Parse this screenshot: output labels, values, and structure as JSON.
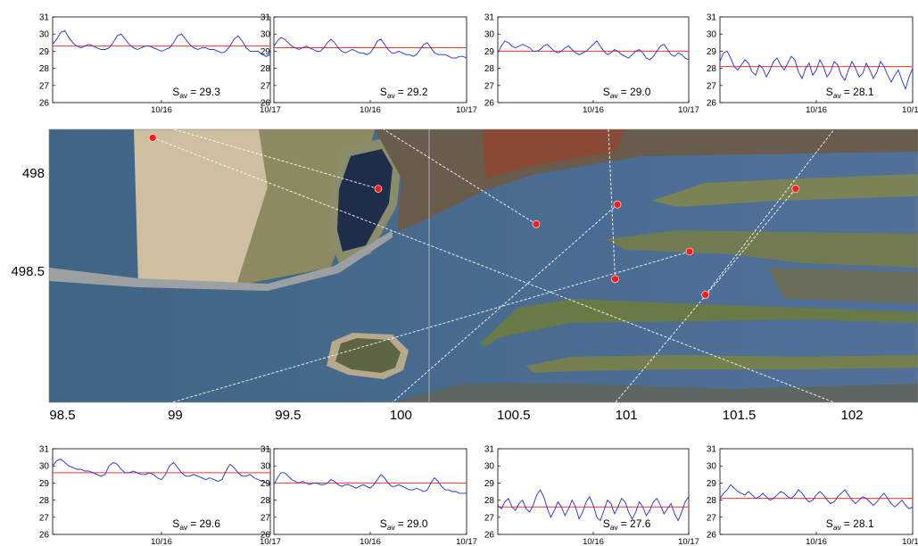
{
  "colors": {
    "series": "#1f2fd6",
    "average": "#ff3030",
    "station": "#ff1a1a",
    "water": "#3f5e88",
    "sea": "#4a6c92",
    "dune": "#cfc2a4",
    "land_green": "#6f7a4c",
    "industry": "#6c5a48"
  },
  "map": {
    "x_ticks": [
      "98.5",
      "99",
      "99.5",
      "100",
      "100.5",
      "101",
      "101.5",
      "102"
    ],
    "y_ticks": [
      "498.5",
      "498"
    ],
    "stations": [
      {
        "x": 99.9,
        "y": 498.08
      },
      {
        "x": 100.6,
        "y": 498.26
      },
      {
        "x": 100.95,
        "y": 498.54
      },
      {
        "x": 101.35,
        "y": 498.62
      },
      {
        "x": 101.28,
        "y": 498.4
      },
      {
        "x": 100.96,
        "y": 498.16
      },
      {
        "x": 101.75,
        "y": 498.08
      },
      {
        "x": 98.9,
        "y": 497.82
      }
    ]
  },
  "chart_data": [
    {
      "type": "line",
      "name": "",
      "ylim": [
        26,
        31
      ],
      "yticks": [
        "26",
        "27",
        "28",
        "29",
        "30",
        "31"
      ],
      "xticks": [
        "10/16",
        "10/17"
      ],
      "average": 29.3,
      "label": "29.3",
      "label_prefix": "S",
      "label_sub": "av",
      "label_eq": "= ",
      "values": [
        29.4,
        29.7,
        30.1,
        30.2,
        29.8,
        29.5,
        29.3,
        29.2,
        29.3,
        29.4,
        29.3,
        29.2,
        29.1,
        29.1,
        29.2,
        29.5,
        29.9,
        30.0,
        29.7,
        29.4,
        29.2,
        29.1,
        29.2,
        29.3,
        29.3,
        29.2,
        29.1,
        29.0,
        29.1,
        29.2,
        29.5,
        29.9,
        30.0,
        29.7,
        29.4,
        29.2,
        29.1,
        29.2,
        29.2,
        29.1,
        29.1,
        29.0,
        28.9,
        29.0,
        29.3,
        29.7,
        29.9,
        29.6,
        29.2,
        29.0,
        29.0,
        29.0,
        28.8,
        28.7,
        28.8
      ]
    },
    {
      "type": "line",
      "name": "",
      "ylim": [
        26,
        31
      ],
      "yticks": [
        "26",
        "27",
        "28",
        "29",
        "30",
        "31"
      ],
      "xticks": [
        "10/16",
        "10/17"
      ],
      "average": 29.2,
      "label": "29.2",
      "label_prefix": "S",
      "label_sub": "av",
      "label_eq": "= ",
      "values": [
        29.3,
        29.6,
        29.8,
        29.7,
        29.5,
        29.3,
        29.2,
        29.1,
        29.2,
        29.3,
        29.2,
        29.1,
        29.0,
        29.0,
        29.2,
        29.5,
        29.7,
        29.5,
        29.2,
        29.0,
        28.9,
        29.0,
        29.1,
        29.0,
        28.9,
        28.9,
        28.8,
        28.9,
        29.2,
        29.6,
        29.7,
        29.4,
        29.1,
        28.9,
        28.9,
        29.0,
        28.9,
        28.8,
        28.8,
        28.7,
        28.8,
        29.1,
        29.4,
        29.5,
        29.2,
        28.9,
        28.8,
        28.8,
        28.8,
        28.7,
        28.6,
        28.6,
        28.7,
        28.7,
        28.6
      ]
    },
    {
      "type": "line",
      "name": "",
      "ylim": [
        26,
        31
      ],
      "yticks": [
        "26",
        "27",
        "28",
        "29",
        "30",
        "31"
      ],
      "xticks": [
        "10/16",
        "10/17"
      ],
      "average": 29.0,
      "label": "29.0",
      "label_prefix": "S",
      "label_sub": "av",
      "label_eq": "= ",
      "values": [
        28.9,
        29.3,
        29.6,
        29.5,
        29.3,
        29.2,
        29.3,
        29.4,
        29.3,
        29.2,
        29.0,
        29.0,
        29.1,
        29.3,
        29.4,
        29.2,
        29.0,
        28.9,
        29.0,
        29.2,
        29.3,
        29.1,
        28.9,
        28.8,
        28.9,
        29.0,
        29.2,
        29.4,
        29.6,
        29.3,
        29.0,
        28.8,
        28.9,
        29.1,
        29.0,
        28.8,
        28.7,
        28.6,
        28.8,
        29.0,
        29.1,
        28.9,
        28.6,
        28.5,
        28.7,
        29.0,
        29.3,
        29.4,
        29.1,
        28.8,
        28.7,
        28.9,
        28.8,
        28.6,
        28.5
      ]
    },
    {
      "type": "line",
      "name": "",
      "ylim": [
        26,
        31
      ],
      "yticks": [
        "26",
        "27",
        "28",
        "29",
        "30",
        "31"
      ],
      "xticks": [
        "10/16",
        "10/17"
      ],
      "average": 28.1,
      "label": "28.1",
      "label_prefix": "S",
      "label_sub": "av",
      "label_eq": "= ",
      "values": [
        28.4,
        28.9,
        29.0,
        28.6,
        28.1,
        27.9,
        28.2,
        28.5,
        28.3,
        27.8,
        27.6,
        28.2,
        28.0,
        27.5,
        27.9,
        28.4,
        28.6,
        28.2,
        27.9,
        28.3,
        28.7,
        28.5,
        27.8,
        27.4,
        28.0,
        28.3,
        27.6,
        27.9,
        28.5,
        28.1,
        27.5,
        27.8,
        28.4,
        28.2,
        27.6,
        27.3,
        27.9,
        28.4,
        28.0,
        27.5,
        27.7,
        28.3,
        27.9,
        27.4,
        27.8,
        28.4,
        28.1,
        27.6,
        27.2,
        27.6,
        27.9,
        27.3,
        26.8,
        27.5,
        28.0
      ]
    },
    {
      "type": "line",
      "name": "",
      "ylim": [
        26,
        31
      ],
      "yticks": [
        "26",
        "27",
        "28",
        "29",
        "30",
        "31"
      ],
      "xticks": [
        "10/16",
        "10/17"
      ],
      "average": 29.6,
      "label": "29.6",
      "label_prefix": "S",
      "label_sub": "av",
      "label_eq": "= ",
      "values": [
        30.0,
        30.3,
        30.4,
        30.2,
        30.0,
        29.9,
        29.8,
        29.8,
        29.7,
        29.7,
        29.6,
        29.5,
        29.4,
        29.5,
        30.0,
        30.2,
        30.1,
        29.8,
        29.6,
        29.6,
        29.7,
        29.6,
        29.5,
        29.5,
        29.6,
        29.5,
        29.3,
        29.2,
        29.5,
        30.0,
        30.2,
        29.9,
        29.6,
        29.4,
        29.4,
        29.5,
        29.4,
        29.3,
        29.2,
        29.3,
        29.2,
        29.1,
        29.2,
        29.7,
        30.1,
        29.9,
        29.6,
        29.4,
        29.4,
        29.5,
        29.3,
        29.2,
        29.1,
        29.0,
        28.9
      ]
    },
    {
      "type": "line",
      "name": "",
      "ylim": [
        26,
        31
      ],
      "yticks": [
        "26",
        "27",
        "28",
        "29",
        "30",
        "31"
      ],
      "xticks": [
        "10/16",
        "10/17"
      ],
      "average": 29.0,
      "label": "29.0",
      "label_prefix": "S",
      "label_sub": "av",
      "label_eq": "= ",
      "values": [
        28.9,
        29.3,
        29.6,
        29.6,
        29.4,
        29.2,
        29.1,
        29.0,
        29.1,
        29.0,
        28.9,
        29.0,
        29.0,
        28.9,
        28.9,
        29.0,
        29.2,
        29.1,
        28.9,
        28.8,
        28.9,
        28.9,
        28.8,
        28.7,
        28.8,
        28.9,
        28.8,
        28.7,
        28.9,
        29.2,
        29.5,
        29.3,
        29.0,
        28.8,
        28.8,
        28.9,
        28.8,
        28.7,
        28.6,
        28.6,
        28.7,
        28.6,
        28.5,
        28.6,
        29.0,
        29.3,
        29.1,
        28.8,
        28.6,
        28.6,
        28.5,
        28.5,
        28.4,
        28.4,
        28.4
      ]
    },
    {
      "type": "line",
      "name": "",
      "ylim": [
        26,
        31
      ],
      "yticks": [
        "26",
        "27",
        "28",
        "29",
        "30",
        "31"
      ],
      "xticks": [
        "10/16",
        "10/17"
      ],
      "average": 27.6,
      "label": "27.6",
      "label_prefix": "S",
      "label_sub": "av",
      "label_eq": "= ",
      "values": [
        27.7,
        27.5,
        27.9,
        28.1,
        27.6,
        27.4,
        27.8,
        28.0,
        27.5,
        27.3,
        27.7,
        28.3,
        28.6,
        28.2,
        27.5,
        27.0,
        27.4,
        27.9,
        27.6,
        27.1,
        27.5,
        28.0,
        27.6,
        26.9,
        27.3,
        27.9,
        28.2,
        27.7,
        27.0,
        26.8,
        27.4,
        28.0,
        27.8,
        27.2,
        27.6,
        28.1,
        27.9,
        27.3,
        26.9,
        27.3,
        27.9,
        27.6,
        27.1,
        27.4,
        27.9,
        28.1,
        27.7,
        27.2,
        27.5,
        27.8,
        27.2,
        26.8,
        27.3,
        27.9,
        28.2
      ]
    },
    {
      "type": "line",
      "name": "",
      "ylim": [
        26,
        31
      ],
      "yticks": [
        "26",
        "27",
        "28",
        "29",
        "30",
        "31"
      ],
      "xticks": [
        "10/16",
        "10/17"
      ],
      "average": 28.1,
      "label": "28.1",
      "label_prefix": "S",
      "label_sub": "av",
      "label_eq": "= ",
      "values": [
        28.1,
        28.4,
        28.6,
        28.9,
        28.7,
        28.5,
        28.4,
        28.3,
        28.5,
        28.3,
        28.1,
        28.2,
        28.4,
        28.2,
        28.0,
        28.1,
        28.3,
        28.5,
        28.4,
        28.2,
        28.1,
        28.3,
        28.6,
        28.4,
        28.1,
        27.9,
        28.0,
        28.3,
        28.5,
        28.3,
        28.0,
        27.8,
        27.9,
        28.2,
        28.4,
        28.6,
        28.3,
        28.0,
        27.8,
        28.0,
        28.2,
        28.1,
        27.9,
        27.7,
        27.9,
        28.2,
        28.4,
        28.1,
        27.8,
        27.6,
        27.8,
        28.0,
        27.7,
        27.5,
        27.6
      ]
    }
  ]
}
